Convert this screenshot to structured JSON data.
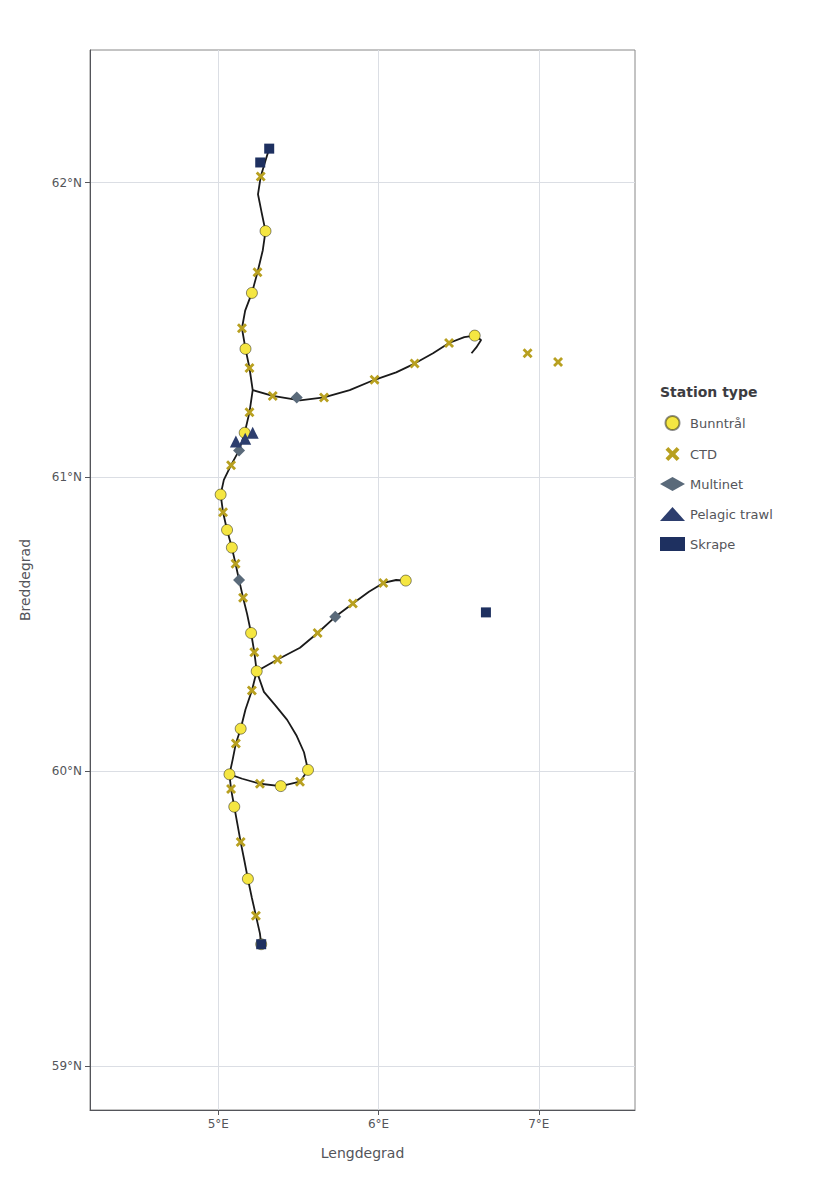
{
  "chart_data": {
    "type": "scatter",
    "xlabel": "Lengdegrad",
    "ylabel": "Breddegrad",
    "legend_title": "Station type",
    "legend": "right",
    "grid": true,
    "xlim": [
      4.2,
      7.6
    ],
    "ylim": [
      58.85,
      62.45
    ],
    "xticks": [
      {
        "value": 5.0,
        "label": "5°E"
      },
      {
        "value": 6.0,
        "label": "6°E"
      },
      {
        "value": 7.0,
        "label": "7°E"
      }
    ],
    "yticks": [
      {
        "value": 59.0,
        "label": "59°N"
      },
      {
        "value": 60.0,
        "label": "60°N"
      },
      {
        "value": 61.0,
        "label": "61°N"
      },
      {
        "value": 62.0,
        "label": "62°N"
      }
    ],
    "series": [
      {
        "type": "line",
        "color": "#1a1a1a",
        "line_style": "solid",
        "values": [
          [
            5.268,
            59.413
          ],
          [
            5.26,
            59.45
          ],
          [
            5.235,
            59.51
          ],
          [
            5.21,
            59.57
          ],
          [
            5.185,
            59.635
          ],
          [
            5.162,
            59.7
          ],
          [
            5.14,
            59.76
          ],
          [
            5.12,
            59.82
          ],
          [
            5.1,
            59.88
          ],
          [
            5.08,
            59.94
          ],
          [
            5.07,
            59.99
          ],
          [
            5.09,
            60.04
          ],
          [
            5.11,
            60.095
          ],
          [
            5.14,
            60.145
          ],
          [
            5.17,
            60.21
          ],
          [
            5.21,
            60.275
          ],
          [
            5.24,
            60.34
          ],
          [
            5.225,
            60.405
          ],
          [
            5.205,
            60.47
          ],
          [
            5.18,
            60.535
          ],
          [
            5.155,
            60.59
          ],
          [
            5.13,
            60.65
          ],
          [
            5.108,
            60.705
          ],
          [
            5.085,
            60.76
          ],
          [
            5.055,
            60.82
          ],
          [
            5.03,
            60.88
          ],
          [
            5.015,
            60.94
          ],
          [
            5.035,
            60.99
          ],
          [
            5.08,
            61.04
          ],
          [
            5.13,
            61.09
          ],
          [
            5.165,
            61.15
          ],
          [
            5.195,
            61.22
          ],
          [
            5.215,
            61.295
          ],
          [
            5.195,
            61.37
          ],
          [
            5.17,
            61.435
          ],
          [
            5.148,
            61.505
          ],
          [
            5.168,
            61.565
          ],
          [
            5.21,
            61.625
          ],
          [
            5.245,
            61.695
          ],
          [
            5.278,
            61.77
          ],
          [
            5.295,
            61.835
          ],
          [
            5.27,
            61.9
          ],
          [
            5.248,
            61.96
          ],
          [
            5.265,
            62.02
          ],
          [
            5.295,
            62.075
          ],
          [
            5.318,
            62.115
          ]
        ]
      },
      {
        "type": "line",
        "color": "#1a1a1a",
        "line_style": "solid",
        "values": [
          [
            5.07,
            59.99
          ],
          [
            5.15,
            59.975
          ],
          [
            5.26,
            59.958
          ],
          [
            5.39,
            59.95
          ],
          [
            5.51,
            59.965
          ],
          [
            5.56,
            60.005
          ],
          [
            5.535,
            60.065
          ],
          [
            5.49,
            60.12
          ],
          [
            5.43,
            60.175
          ],
          [
            5.355,
            60.225
          ],
          [
            5.285,
            60.27
          ],
          [
            5.24,
            60.34
          ]
        ]
      },
      {
        "type": "line",
        "color": "#1a1a1a",
        "line_style": "solid",
        "values": [
          [
            5.215,
            61.295
          ],
          [
            5.34,
            61.275
          ],
          [
            5.51,
            61.26
          ],
          [
            5.66,
            61.27
          ],
          [
            5.82,
            61.295
          ],
          [
            5.975,
            61.33
          ],
          [
            6.11,
            61.355
          ],
          [
            6.225,
            61.385
          ],
          [
            6.34,
            61.42
          ],
          [
            6.44,
            61.455
          ],
          [
            6.535,
            61.475
          ],
          [
            6.6,
            61.48
          ],
          [
            6.64,
            61.465
          ],
          [
            6.61,
            61.44
          ],
          [
            6.58,
            61.42
          ]
        ]
      },
      {
        "type": "line",
        "color": "#1a1a1a",
        "line_style": "solid",
        "values": [
          [
            5.24,
            60.34
          ],
          [
            5.37,
            60.38
          ],
          [
            5.51,
            60.42
          ],
          [
            5.62,
            60.47
          ],
          [
            5.73,
            60.525
          ],
          [
            5.84,
            60.57
          ],
          [
            5.94,
            60.61
          ],
          [
            6.03,
            60.64
          ],
          [
            6.11,
            60.65
          ],
          [
            6.17,
            60.648
          ]
        ]
      },
      {
        "type": "scatter",
        "name": "Bunntrål",
        "color": "#f5e642",
        "marker": "circle",
        "values": [
          [
            5.268,
            59.413
          ],
          [
            5.185,
            59.635
          ],
          [
            5.1,
            59.88
          ],
          [
            5.07,
            59.99
          ],
          [
            5.14,
            60.145
          ],
          [
            5.24,
            60.34
          ],
          [
            5.205,
            60.47
          ],
          [
            5.085,
            60.76
          ],
          [
            5.055,
            60.82
          ],
          [
            5.015,
            60.94
          ],
          [
            5.165,
            61.15
          ],
          [
            5.17,
            61.435
          ],
          [
            5.21,
            61.625
          ],
          [
            5.295,
            61.835
          ],
          [
            6.6,
            61.48
          ],
          [
            6.17,
            60.648
          ],
          [
            5.56,
            60.005
          ],
          [
            5.39,
            59.95
          ]
        ]
      },
      {
        "type": "scatter",
        "name": "CTD",
        "color": "#b8a020",
        "marker": "x",
        "values": [
          [
            5.235,
            59.51
          ],
          [
            5.14,
            59.76
          ],
          [
            5.08,
            59.94
          ],
          [
            5.11,
            60.095
          ],
          [
            5.21,
            60.275
          ],
          [
            5.225,
            60.405
          ],
          [
            5.155,
            60.59
          ],
          [
            5.108,
            60.705
          ],
          [
            5.03,
            60.88
          ],
          [
            5.08,
            61.04
          ],
          [
            5.195,
            61.22
          ],
          [
            5.195,
            61.37
          ],
          [
            5.148,
            61.505
          ],
          [
            5.245,
            61.695
          ],
          [
            5.265,
            62.02
          ],
          [
            5.34,
            61.275
          ],
          [
            5.66,
            61.27
          ],
          [
            5.975,
            61.33
          ],
          [
            6.225,
            61.385
          ],
          [
            6.44,
            61.455
          ],
          [
            6.93,
            61.42
          ],
          [
            7.12,
            61.39
          ],
          [
            5.37,
            60.38
          ],
          [
            5.62,
            60.47
          ],
          [
            5.84,
            60.57
          ],
          [
            6.03,
            60.64
          ],
          [
            5.26,
            59.958
          ],
          [
            5.51,
            59.965
          ]
        ]
      },
      {
        "type": "scatter",
        "name": "Multinet",
        "color": "#5a6a7a",
        "marker": "diamond",
        "values": [
          [
            5.13,
            61.09
          ],
          [
            5.49,
            61.27
          ],
          [
            5.73,
            60.525
          ],
          [
            5.13,
            60.65
          ]
        ]
      },
      {
        "type": "scatter",
        "name": "Pelagic trawl",
        "color": "#2d3e6e",
        "marker": "triangle",
        "values": [
          [
            5.11,
            61.12
          ],
          [
            5.168,
            61.13
          ],
          [
            5.215,
            61.15
          ]
        ]
      },
      {
        "type": "scatter",
        "name": "Skrape",
        "color": "#1e3060",
        "marker": "square",
        "values": [
          [
            5.318,
            62.115
          ],
          [
            5.262,
            62.068
          ],
          [
            5.268,
            59.413
          ],
          [
            6.67,
            60.54
          ]
        ]
      }
    ]
  }
}
